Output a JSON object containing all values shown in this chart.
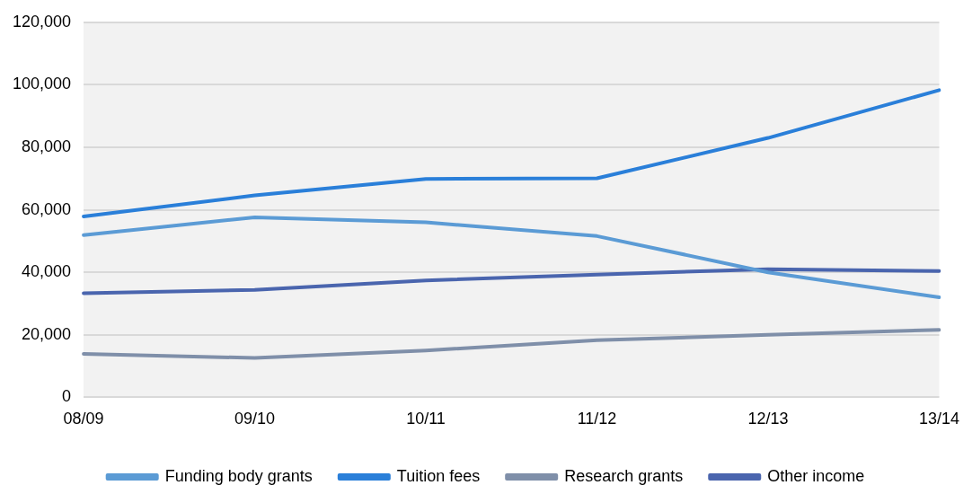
{
  "chart_data": {
    "type": "line",
    "categories": [
      "08/09",
      "09/10",
      "10/11",
      "11/12",
      "12/13",
      "13/14"
    ],
    "series": [
      {
        "name": "Funding body grants",
        "color": "#5b9bd5",
        "values": [
          51900,
          57600,
          56000,
          51600,
          40000,
          32000
        ]
      },
      {
        "name": "Tuition fees",
        "color": "#2a7fd9",
        "values": [
          57900,
          64600,
          69900,
          70100,
          83000,
          98300
        ]
      },
      {
        "name": "Research grants",
        "color": "#7f8fa9",
        "values": [
          13900,
          12600,
          15000,
          18300,
          20000,
          21600
        ]
      },
      {
        "name": "Other income",
        "color": "#4a65ae",
        "values": [
          33300,
          34400,
          37400,
          39300,
          41000,
          40400
        ]
      }
    ],
    "ylim": [
      0,
      120000
    ],
    "yticks": [
      0,
      {
        "value": 20000,
        "label": "20,000"
      },
      {
        "value": 40000,
        "label": "40,000"
      },
      {
        "value": 60000,
        "label": "60,000"
      },
      {
        "value": 80000,
        "label": "80,000"
      },
      {
        "value": 100000,
        "label": "100,000"
      },
      {
        "value": 120000,
        "label": "120,000"
      }
    ],
    "grid": "y",
    "legend": "bottom",
    "marker": "none",
    "line_style": "solid"
  }
}
